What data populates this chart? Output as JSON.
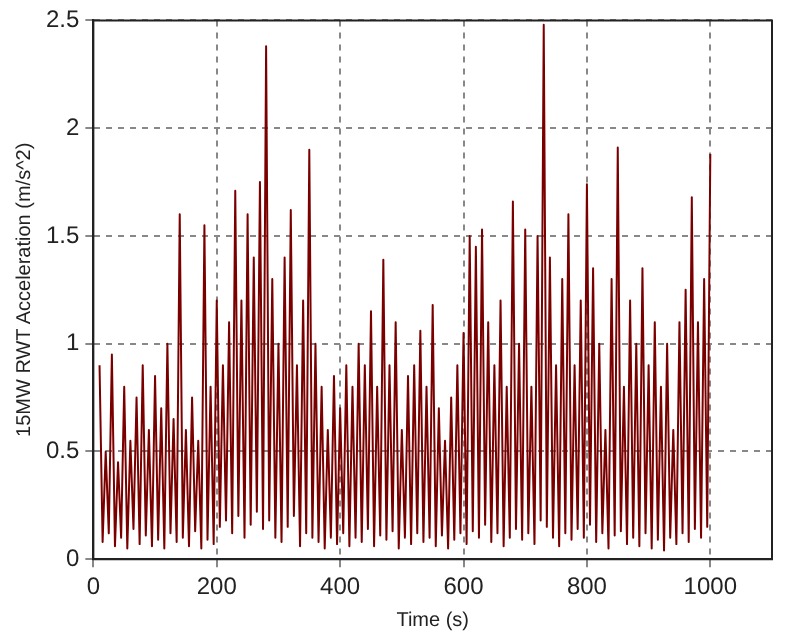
{
  "chart_data": {
    "type": "line",
    "xlabel": "Time (s)",
    "ylabel": "15MW RWT Acceleration (m/s^2)",
    "xlim": [
      0,
      1100
    ],
    "xticks": [
      0,
      200,
      400,
      600,
      800,
      1000
    ],
    "ylim": [
      0,
      2.5
    ],
    "yticks": [
      0,
      0.5,
      1,
      1.5,
      2,
      2.5
    ],
    "grid": true,
    "legend": false,
    "marker": "none",
    "line_style": "solid",
    "series": [
      {
        "color": "#7a0000",
        "x": [
          10,
          15,
          20,
          25,
          30,
          35,
          40,
          45,
          50,
          55,
          60,
          65,
          70,
          75,
          80,
          85,
          90,
          95,
          100,
          105,
          110,
          115,
          120,
          125,
          130,
          135,
          140,
          145,
          150,
          155,
          160,
          165,
          170,
          175,
          180,
          185,
          190,
          195,
          200,
          205,
          210,
          215,
          220,
          225,
          230,
          235,
          240,
          245,
          250,
          255,
          260,
          265,
          270,
          275,
          280,
          285,
          290,
          295,
          300,
          305,
          310,
          315,
          320,
          325,
          330,
          335,
          340,
          345,
          350,
          355,
          360,
          365,
          370,
          375,
          380,
          385,
          390,
          395,
          400,
          405,
          410,
          415,
          420,
          425,
          430,
          435,
          440,
          445,
          450,
          455,
          460,
          465,
          470,
          475,
          480,
          485,
          490,
          495,
          500,
          505,
          510,
          515,
          520,
          525,
          530,
          535,
          540,
          545,
          550,
          555,
          560,
          565,
          570,
          575,
          580,
          585,
          590,
          595,
          600,
          605,
          610,
          615,
          620,
          625,
          630,
          635,
          640,
          645,
          650,
          655,
          660,
          665,
          670,
          675,
          680,
          685,
          690,
          695,
          700,
          705,
          710,
          715,
          720,
          725,
          730,
          735,
          740,
          745,
          750,
          755,
          760,
          765,
          770,
          775,
          780,
          785,
          790,
          795,
          800,
          805,
          810,
          815,
          820,
          825,
          830,
          835,
          840,
          845,
          850,
          855,
          860,
          865,
          870,
          875,
          880,
          885,
          890,
          895,
          900,
          905,
          910,
          915,
          920,
          925,
          930,
          935,
          940,
          945,
          950,
          955,
          960,
          965,
          970,
          975,
          980,
          985,
          990,
          995,
          1000
        ],
        "values": [
          0.9,
          0.08,
          0.5,
          0.12,
          0.95,
          0.06,
          0.45,
          0.1,
          0.8,
          0.05,
          0.55,
          0.14,
          0.75,
          0.07,
          0.9,
          0.11,
          0.6,
          0.06,
          0.85,
          0.09,
          0.7,
          0.05,
          1.0,
          0.12,
          0.65,
          0.08,
          1.6,
          0.1,
          0.6,
          0.06,
          0.75,
          0.13,
          0.55,
          0.05,
          1.55,
          0.09,
          0.8,
          0.07,
          1.2,
          0.15,
          0.9,
          0.18,
          1.1,
          0.12,
          1.71,
          0.2,
          1.2,
          0.1,
          1.6,
          0.16,
          1.4,
          0.22,
          1.75,
          0.14,
          2.38,
          0.18,
          1.3,
          0.1,
          1.0,
          0.08,
          1.4,
          0.15,
          1.62,
          0.2,
          0.9,
          0.06,
          1.2,
          0.12,
          1.9,
          0.1,
          1.0,
          0.08,
          0.8,
          0.05,
          0.6,
          0.1,
          0.85,
          0.07,
          0.7,
          0.12,
          0.9,
          0.06,
          0.8,
          0.1,
          1.0,
          0.08,
          0.9,
          0.14,
          1.15,
          0.06,
          0.8,
          0.11,
          1.39,
          0.09,
          0.9,
          0.13,
          1.1,
          0.05,
          0.6,
          0.1,
          0.85,
          0.07,
          0.9,
          0.12,
          1.06,
          0.08,
          0.8,
          0.1,
          1.18,
          0.06,
          0.7,
          0.11,
          0.55,
          0.05,
          0.75,
          0.09,
          0.9,
          0.12,
          1.05,
          0.07,
          1.5,
          0.13,
          1.45,
          0.1,
          1.53,
          0.16,
          1.1,
          0.08,
          0.9,
          0.12,
          1.2,
          0.06,
          0.8,
          0.1,
          1.66,
          0.14,
          1.0,
          0.09,
          1.53,
          0.12,
          0.8,
          0.07,
          1.5,
          0.18,
          2.48,
          0.15,
          1.4,
          0.1,
          0.9,
          0.06,
          1.3,
          0.12,
          1.6,
          0.09,
          0.9,
          0.14,
          1.2,
          0.1,
          1.74,
          0.16,
          1.35,
          0.08,
          1.0,
          0.12,
          0.6,
          0.05,
          1.3,
          0.11,
          1.91,
          0.13,
          0.8,
          0.07,
          1.2,
          0.1,
          1.0,
          0.06,
          1.35,
          0.12,
          0.9,
          0.05,
          1.1,
          0.09,
          0.8,
          0.04,
          1.0,
          0.1,
          0.6,
          0.07,
          1.1,
          0.12,
          1.25,
          0.08,
          1.68,
          0.14,
          1.1,
          0.1,
          1.3,
          0.15,
          1.88
        ]
      }
    ]
  }
}
